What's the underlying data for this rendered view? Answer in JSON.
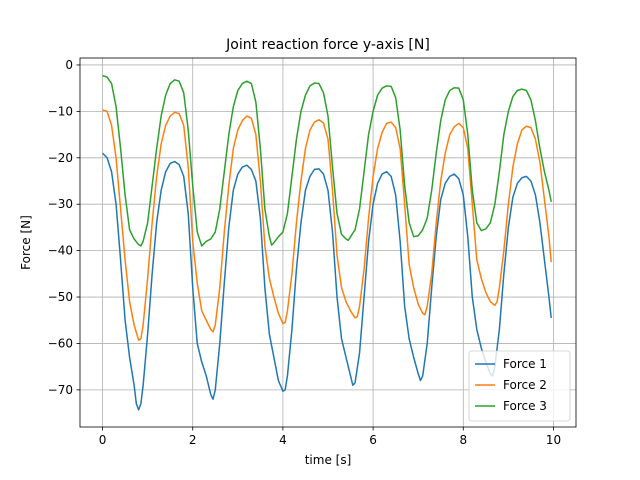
{
  "chart_data": {
    "type": "line",
    "title": "Joint reaction force y-axis [N]",
    "xlabel": "time [s]",
    "ylabel": "Force [N]",
    "xlim": [
      -0.5,
      10.5
    ],
    "ylim": [
      -78,
      1.5
    ],
    "xticks": [
      0,
      2,
      4,
      6,
      8,
      10
    ],
    "yticks": [
      0,
      -10,
      -20,
      -30,
      -40,
      -50,
      -60,
      -70
    ],
    "grid": true,
    "legend": "lower-right",
    "series": [
      {
        "name": "Force 1",
        "color": "#1f77b4",
        "points": [
          [
            0.0,
            -19
          ],
          [
            0.1,
            -20
          ],
          [
            0.2,
            -23
          ],
          [
            0.3,
            -30
          ],
          [
            0.4,
            -42
          ],
          [
            0.5,
            -55
          ],
          [
            0.6,
            -63
          ],
          [
            0.7,
            -69
          ],
          [
            0.75,
            -73
          ],
          [
            0.8,
            -74.3
          ],
          [
            0.85,
            -73
          ],
          [
            0.9,
            -69
          ],
          [
            1.0,
            -58
          ],
          [
            1.1,
            -45
          ],
          [
            1.2,
            -34
          ],
          [
            1.3,
            -27
          ],
          [
            1.4,
            -23
          ],
          [
            1.5,
            -21.2
          ],
          [
            1.6,
            -20.8
          ],
          [
            1.7,
            -21.5
          ],
          [
            1.8,
            -24
          ],
          [
            1.9,
            -32
          ],
          [
            2.0,
            -48
          ],
          [
            2.1,
            -60
          ],
          [
            2.2,
            -64
          ],
          [
            2.3,
            -67
          ],
          [
            2.4,
            -71
          ],
          [
            2.45,
            -72
          ],
          [
            2.5,
            -70
          ],
          [
            2.6,
            -60
          ],
          [
            2.7,
            -47
          ],
          [
            2.8,
            -35
          ],
          [
            2.9,
            -27
          ],
          [
            3.0,
            -23.5
          ],
          [
            3.1,
            -22
          ],
          [
            3.2,
            -21.6
          ],
          [
            3.3,
            -22.5
          ],
          [
            3.4,
            -25
          ],
          [
            3.5,
            -33
          ],
          [
            3.6,
            -48
          ],
          [
            3.7,
            -58
          ],
          [
            3.8,
            -63
          ],
          [
            3.9,
            -68
          ],
          [
            4.0,
            -70.3
          ],
          [
            4.05,
            -70
          ],
          [
            4.1,
            -67
          ],
          [
            4.2,
            -57
          ],
          [
            4.3,
            -44
          ],
          [
            4.4,
            -34
          ],
          [
            4.5,
            -27
          ],
          [
            4.6,
            -24
          ],
          [
            4.7,
            -22.5
          ],
          [
            4.8,
            -22.4
          ],
          [
            4.9,
            -23.5
          ],
          [
            5.0,
            -27
          ],
          [
            5.1,
            -36
          ],
          [
            5.2,
            -50
          ],
          [
            5.3,
            -59
          ],
          [
            5.4,
            -63
          ],
          [
            5.5,
            -67
          ],
          [
            5.55,
            -69
          ],
          [
            5.6,
            -68.5
          ],
          [
            5.7,
            -62
          ],
          [
            5.8,
            -50
          ],
          [
            5.9,
            -38
          ],
          [
            6.0,
            -30
          ],
          [
            6.1,
            -25.5
          ],
          [
            6.2,
            -23.5
          ],
          [
            6.3,
            -23
          ],
          [
            6.4,
            -24
          ],
          [
            6.5,
            -28
          ],
          [
            6.6,
            -38
          ],
          [
            6.7,
            -52
          ],
          [
            6.8,
            -59
          ],
          [
            6.9,
            -63
          ],
          [
            7.0,
            -66.5
          ],
          [
            7.05,
            -68
          ],
          [
            7.1,
            -67
          ],
          [
            7.2,
            -60
          ],
          [
            7.3,
            -48
          ],
          [
            7.4,
            -37
          ],
          [
            7.5,
            -29
          ],
          [
            7.6,
            -25.5
          ],
          [
            7.7,
            -24
          ],
          [
            7.8,
            -23.5
          ],
          [
            7.9,
            -24.5
          ],
          [
            8.0,
            -28
          ],
          [
            8.1,
            -37
          ],
          [
            8.2,
            -50
          ],
          [
            8.3,
            -57
          ],
          [
            8.4,
            -61
          ],
          [
            8.5,
            -64
          ],
          [
            8.6,
            -66.5
          ],
          [
            8.65,
            -67
          ],
          [
            8.7,
            -65
          ],
          [
            8.8,
            -57
          ],
          [
            8.9,
            -45
          ],
          [
            9.0,
            -35
          ],
          [
            9.1,
            -28.5
          ],
          [
            9.2,
            -25.5
          ],
          [
            9.3,
            -24.3
          ],
          [
            9.4,
            -24
          ],
          [
            9.5,
            -25
          ],
          [
            9.6,
            -28
          ],
          [
            9.7,
            -34
          ],
          [
            9.8,
            -42
          ],
          [
            9.9,
            -50
          ],
          [
            9.95,
            -54.5
          ]
        ]
      },
      {
        "name": "Force 2",
        "color": "#ff7f0e",
        "points": [
          [
            0.0,
            -9.7
          ],
          [
            0.1,
            -10
          ],
          [
            0.2,
            -13
          ],
          [
            0.3,
            -20
          ],
          [
            0.4,
            -31
          ],
          [
            0.5,
            -42
          ],
          [
            0.6,
            -51
          ],
          [
            0.7,
            -56
          ],
          [
            0.8,
            -59.3
          ],
          [
            0.85,
            -59
          ],
          [
            0.9,
            -56
          ],
          [
            1.0,
            -46
          ],
          [
            1.1,
            -34
          ],
          [
            1.2,
            -24
          ],
          [
            1.3,
            -17
          ],
          [
            1.4,
            -13
          ],
          [
            1.5,
            -11
          ],
          [
            1.6,
            -10.2
          ],
          [
            1.7,
            -10.5
          ],
          [
            1.8,
            -13
          ],
          [
            1.9,
            -22
          ],
          [
            2.0,
            -38
          ],
          [
            2.1,
            -47
          ],
          [
            2.2,
            -53
          ],
          [
            2.3,
            -55
          ],
          [
            2.4,
            -57
          ],
          [
            2.45,
            -57.5
          ],
          [
            2.5,
            -56
          ],
          [
            2.6,
            -48
          ],
          [
            2.7,
            -36
          ],
          [
            2.8,
            -26
          ],
          [
            2.9,
            -18
          ],
          [
            3.0,
            -14
          ],
          [
            3.1,
            -12
          ],
          [
            3.2,
            -11
          ],
          [
            3.3,
            -11.5
          ],
          [
            3.4,
            -15
          ],
          [
            3.5,
            -25
          ],
          [
            3.6,
            -39
          ],
          [
            3.7,
            -46
          ],
          [
            3.8,
            -50
          ],
          [
            3.9,
            -53.5
          ],
          [
            4.0,
            -55.7
          ],
          [
            4.05,
            -55.5
          ],
          [
            4.1,
            -53
          ],
          [
            4.2,
            -45
          ],
          [
            4.3,
            -34
          ],
          [
            4.4,
            -25
          ],
          [
            4.5,
            -18
          ],
          [
            4.6,
            -14
          ],
          [
            4.7,
            -12.3
          ],
          [
            4.8,
            -11.8
          ],
          [
            4.9,
            -12.5
          ],
          [
            5.0,
            -16
          ],
          [
            5.1,
            -27
          ],
          [
            5.2,
            -41
          ],
          [
            5.3,
            -48
          ],
          [
            5.4,
            -51
          ],
          [
            5.5,
            -53
          ],
          [
            5.6,
            -54.5
          ],
          [
            5.65,
            -54.2
          ],
          [
            5.7,
            -52
          ],
          [
            5.8,
            -44
          ],
          [
            5.9,
            -33
          ],
          [
            6.0,
            -24
          ],
          [
            6.1,
            -18
          ],
          [
            6.2,
            -14.5
          ],
          [
            6.3,
            -12.6
          ],
          [
            6.4,
            -12.3
          ],
          [
            6.5,
            -13.5
          ],
          [
            6.6,
            -18
          ],
          [
            6.7,
            -30
          ],
          [
            6.8,
            -43
          ],
          [
            6.9,
            -48
          ],
          [
            7.0,
            -51.5
          ],
          [
            7.1,
            -53.5
          ],
          [
            7.15,
            -53.8
          ],
          [
            7.2,
            -52
          ],
          [
            7.3,
            -45
          ],
          [
            7.4,
            -34
          ],
          [
            7.5,
            -25
          ],
          [
            7.6,
            -19
          ],
          [
            7.7,
            -15
          ],
          [
            7.8,
            -13.3
          ],
          [
            7.9,
            -12.6
          ],
          [
            8.0,
            -13.5
          ],
          [
            8.1,
            -18
          ],
          [
            8.2,
            -30
          ],
          [
            8.3,
            -42
          ],
          [
            8.4,
            -46
          ],
          [
            8.5,
            -49
          ],
          [
            8.6,
            -51
          ],
          [
            8.7,
            -51.8
          ],
          [
            8.75,
            -51
          ],
          [
            8.8,
            -48
          ],
          [
            8.9,
            -40
          ],
          [
            9.0,
            -30
          ],
          [
            9.1,
            -22
          ],
          [
            9.2,
            -17
          ],
          [
            9.3,
            -14
          ],
          [
            9.4,
            -13.2
          ],
          [
            9.5,
            -13.5
          ],
          [
            9.6,
            -16
          ],
          [
            9.7,
            -21
          ],
          [
            9.8,
            -29
          ],
          [
            9.9,
            -37
          ],
          [
            9.95,
            -42.5
          ]
        ]
      },
      {
        "name": "Force 3",
        "color": "#2ca02c",
        "points": [
          [
            0.0,
            -2.3
          ],
          [
            0.1,
            -2.6
          ],
          [
            0.2,
            -4
          ],
          [
            0.3,
            -9
          ],
          [
            0.4,
            -18
          ],
          [
            0.5,
            -28
          ],
          [
            0.6,
            -35.5
          ],
          [
            0.7,
            -37.5
          ],
          [
            0.8,
            -38.7
          ],
          [
            0.85,
            -39
          ],
          [
            0.9,
            -38
          ],
          [
            1.0,
            -34
          ],
          [
            1.1,
            -26
          ],
          [
            1.2,
            -18
          ],
          [
            1.3,
            -11
          ],
          [
            1.4,
            -6.5
          ],
          [
            1.5,
            -4
          ],
          [
            1.6,
            -3.2
          ],
          [
            1.7,
            -3.5
          ],
          [
            1.8,
            -6
          ],
          [
            1.9,
            -14
          ],
          [
            2.0,
            -26
          ],
          [
            2.1,
            -36
          ],
          [
            2.2,
            -39
          ],
          [
            2.3,
            -38
          ],
          [
            2.4,
            -37.5
          ],
          [
            2.5,
            -36
          ],
          [
            2.6,
            -31
          ],
          [
            2.7,
            -23
          ],
          [
            2.8,
            -15
          ],
          [
            2.9,
            -9
          ],
          [
            3.0,
            -5.5
          ],
          [
            3.1,
            -4
          ],
          [
            3.2,
            -3.5
          ],
          [
            3.3,
            -4
          ],
          [
            3.4,
            -8
          ],
          [
            3.5,
            -18
          ],
          [
            3.6,
            -31
          ],
          [
            3.7,
            -37
          ],
          [
            3.75,
            -38.8
          ],
          [
            3.8,
            -38.3
          ],
          [
            3.9,
            -37
          ],
          [
            4.0,
            -36
          ],
          [
            4.1,
            -32
          ],
          [
            4.2,
            -24
          ],
          [
            4.3,
            -16
          ],
          [
            4.4,
            -10
          ],
          [
            4.5,
            -6.5
          ],
          [
            4.6,
            -4.5
          ],
          [
            4.7,
            -3.9
          ],
          [
            4.8,
            -4
          ],
          [
            4.9,
            -6
          ],
          [
            5.0,
            -11
          ],
          [
            5.1,
            -22
          ],
          [
            5.2,
            -32
          ],
          [
            5.3,
            -36.5
          ],
          [
            5.4,
            -37.5
          ],
          [
            5.45,
            -37.8
          ],
          [
            5.5,
            -37
          ],
          [
            5.6,
            -35.5
          ],
          [
            5.7,
            -31
          ],
          [
            5.8,
            -23
          ],
          [
            5.9,
            -15
          ],
          [
            6.0,
            -10
          ],
          [
            6.1,
            -6.5
          ],
          [
            6.2,
            -5
          ],
          [
            6.3,
            -4.5
          ],
          [
            6.4,
            -4.6
          ],
          [
            6.5,
            -7
          ],
          [
            6.6,
            -14
          ],
          [
            6.7,
            -26
          ],
          [
            6.8,
            -34
          ],
          [
            6.9,
            -37
          ],
          [
            7.0,
            -36.8
          ],
          [
            7.1,
            -35.5
          ],
          [
            7.2,
            -33
          ],
          [
            7.3,
            -27
          ],
          [
            7.4,
            -19
          ],
          [
            7.5,
            -12
          ],
          [
            7.6,
            -7.5
          ],
          [
            7.7,
            -5.5
          ],
          [
            7.8,
            -4.9
          ],
          [
            7.9,
            -5
          ],
          [
            8.0,
            -7.5
          ],
          [
            8.1,
            -15
          ],
          [
            8.2,
            -27
          ],
          [
            8.3,
            -34
          ],
          [
            8.4,
            -35.7
          ],
          [
            8.5,
            -35.3
          ],
          [
            8.6,
            -34
          ],
          [
            8.7,
            -30
          ],
          [
            8.8,
            -23
          ],
          [
            8.9,
            -15
          ],
          [
            9.0,
            -10
          ],
          [
            9.1,
            -6.8
          ],
          [
            9.2,
            -5.5
          ],
          [
            9.3,
            -5.2
          ],
          [
            9.4,
            -5.5
          ],
          [
            9.5,
            -7.5
          ],
          [
            9.6,
            -12
          ],
          [
            9.7,
            -18
          ],
          [
            9.8,
            -23
          ],
          [
            9.9,
            -27
          ],
          [
            9.95,
            -29.5
          ]
        ]
      }
    ]
  }
}
